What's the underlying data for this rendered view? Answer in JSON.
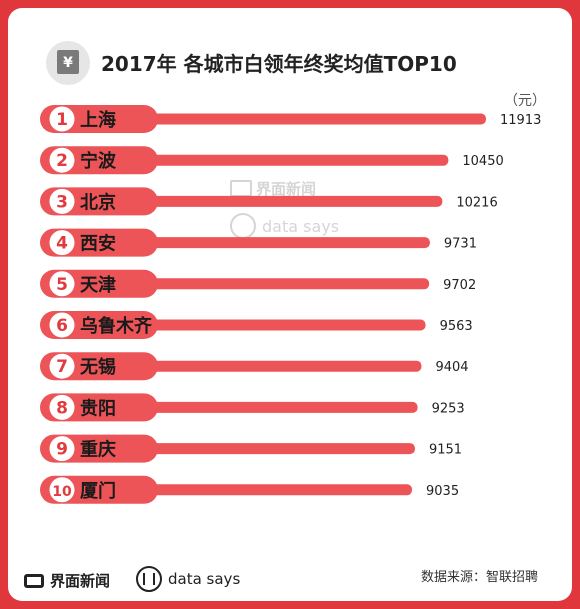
{
  "title": "2017年 各城市白领年终奖均值TOP10",
  "title_icon": "yen-note-icon",
  "unit": "（元）",
  "watermark": {
    "brand": "界面新闻",
    "tagline": "data says"
  },
  "footer": {
    "brand": "界面新闻",
    "tagline": "data says",
    "source": "数据来源：智联招聘"
  },
  "colors": {
    "background": "#e0373c",
    "bar": "#ec5458",
    "pill": "#ec5458",
    "badge_bg": "#ffffff",
    "badge_text": "#e23a3f"
  },
  "chart_data": {
    "type": "bar",
    "orientation": "horizontal",
    "title": "2017年 各城市白领年终奖均值TOP10",
    "ylabel": "（元）",
    "categories": [
      "上海",
      "宁波",
      "北京",
      "西安",
      "天津",
      "乌鲁木齐",
      "无锡",
      "贵阳",
      "重庆",
      "厦门"
    ],
    "ranks": [
      "1",
      "2",
      "3",
      "4",
      "5",
      "6",
      "7",
      "8",
      "9",
      "10"
    ],
    "values": [
      11913,
      10450,
      10216,
      9731,
      9702,
      9563,
      9404,
      9253,
      9151,
      9035
    ],
    "data_labels": [
      "11913",
      "10450",
      "10216",
      "9731",
      "9702",
      "9563",
      "9404",
      "9253",
      "9151",
      "9035"
    ],
    "grid": false,
    "legend": "none"
  }
}
